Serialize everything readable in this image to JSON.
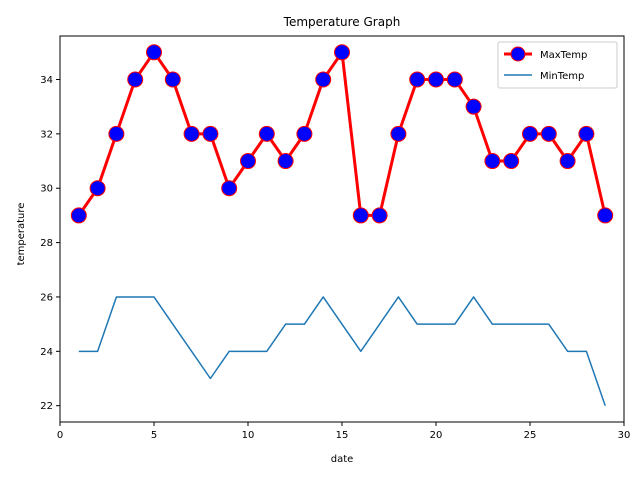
{
  "chart_data": {
    "type": "line",
    "title": "Temperature Graph",
    "xlabel": "date",
    "ylabel": "temperature",
    "xlim": [
      0,
      30
    ],
    "ylim": [
      21.4,
      35.6
    ],
    "xticks": [
      0,
      5,
      10,
      15,
      20,
      25,
      30
    ],
    "yticks": [
      22,
      24,
      26,
      28,
      30,
      32,
      34
    ],
    "grid": false,
    "legend_position": "top-right",
    "x": [
      1,
      2,
      3,
      4,
      5,
      6,
      7,
      8,
      9,
      10,
      11,
      12,
      13,
      14,
      15,
      16,
      17,
      18,
      19,
      20,
      21,
      22,
      23,
      24,
      25,
      26,
      27,
      28,
      29
    ],
    "series": [
      {
        "name": "MaxTemp",
        "color": "#ff0000",
        "marker": "circle",
        "marker_face": "#0000ff",
        "marker_edge": "#ff0000",
        "values": [
          29,
          30,
          32,
          34,
          35,
          34,
          32,
          32,
          30,
          31,
          32,
          31,
          32,
          34,
          35,
          29,
          29,
          32,
          34,
          34,
          34,
          33,
          31,
          31,
          32,
          32,
          31,
          32,
          29
        ]
      },
      {
        "name": "MinTemp",
        "color": "#1f77b4",
        "marker": "none",
        "values": [
          24,
          24,
          26,
          26,
          26,
          25,
          24,
          23,
          24,
          24,
          24,
          25,
          25,
          26,
          25,
          24,
          25,
          26,
          25,
          25,
          25,
          26,
          25,
          25,
          25,
          25,
          24,
          24,
          22
        ]
      }
    ]
  }
}
